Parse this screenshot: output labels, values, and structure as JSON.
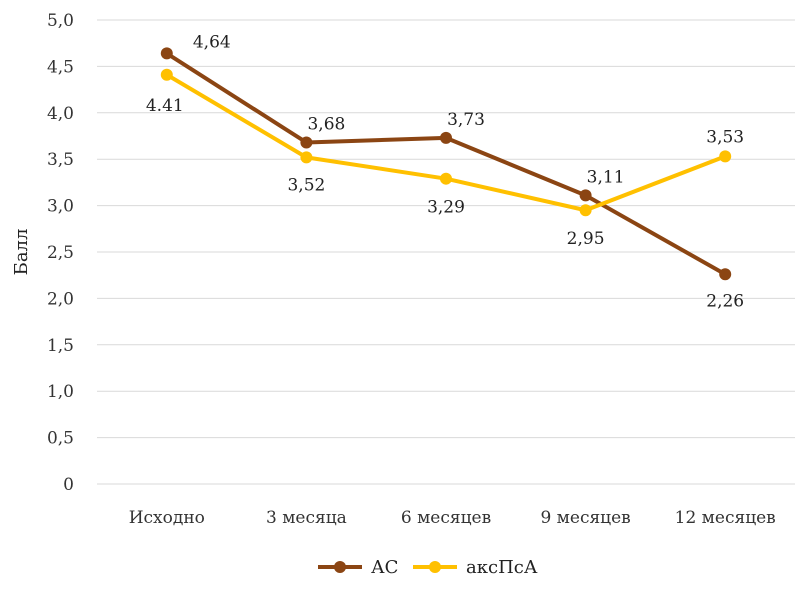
{
  "chart_data": {
    "type": "line",
    "categories": [
      "Исходно",
      "3 месяца",
      "6 месяцев",
      "9 месяцев",
      "12 месяцев"
    ],
    "series": [
      {
        "name": "АС",
        "values": [
          4.64,
          3.68,
          3.73,
          3.11,
          2.26
        ],
        "labels": [
          "4,64",
          "3,68",
          "3,73",
          "3,11",
          "2,26"
        ],
        "color": "#8B4513"
      },
      {
        "name": "аксПсА",
        "values": [
          4.41,
          3.52,
          3.29,
          2.95,
          3.53
        ],
        "labels": [
          "4.41",
          "3,52",
          "3,29",
          "2,95",
          "3,53"
        ],
        "color": "#FFC000"
      }
    ],
    "yticks": [
      "0",
      "0,5",
      "1,0",
      "1,5",
      "2,0",
      "2,5",
      "3,0",
      "3,5",
      "4,0",
      "4,5",
      "5,0"
    ],
    "ylim": [
      0,
      5
    ],
    "ylabel": "Балл",
    "xlabel": "",
    "grid": true,
    "legend_position": "bottom"
  }
}
